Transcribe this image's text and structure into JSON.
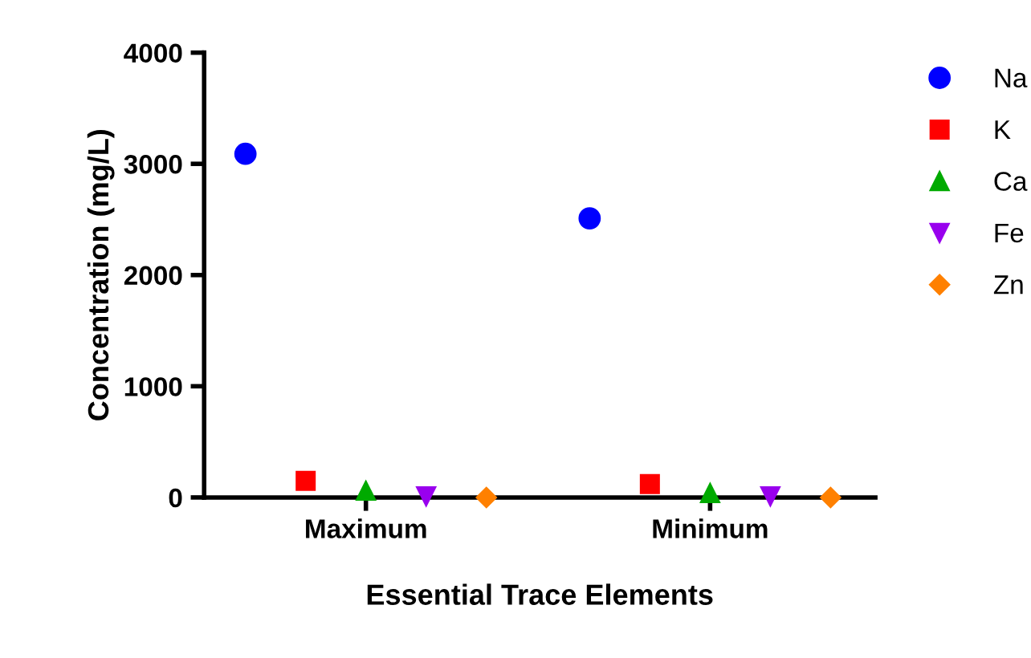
{
  "chart_data": {
    "type": "scatter",
    "xlabel": "Essential Trace Elements",
    "ylabel": "Concentration (mg/L)",
    "categories": [
      "Maximum",
      "Minimum"
    ],
    "series": [
      {
        "name": "Na",
        "color": "#0000ff",
        "marker": "circle",
        "values": [
          3090,
          2510
        ]
      },
      {
        "name": "K",
        "color": "#ff0000",
        "marker": "square",
        "values": [
          150,
          120
        ]
      },
      {
        "name": "Ca",
        "color": "#00aa00",
        "marker": "triangle",
        "values": [
          60,
          40
        ]
      },
      {
        "name": "Fe",
        "color": "#9900ee",
        "marker": "triangle_down",
        "values": [
          10,
          10
        ]
      },
      {
        "name": "Zn",
        "color": "#ff8000",
        "marker": "diamond",
        "values": [
          0,
          0
        ]
      }
    ],
    "ylim": [
      0,
      4000
    ],
    "yticks": [
      0,
      1000,
      2000,
      3000,
      4000
    ],
    "grid": false,
    "legend": "top right"
  }
}
